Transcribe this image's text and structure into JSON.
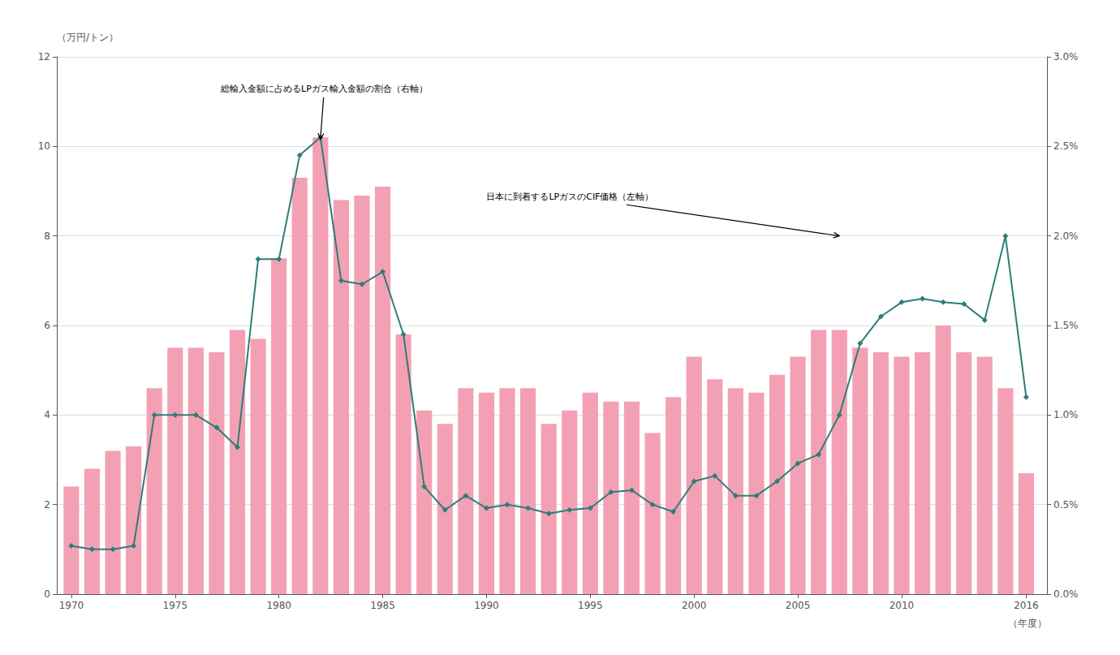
{
  "chart_data": {
    "type": "bar",
    "xlabel": "（年度）",
    "ylabel": "（万円/トン）",
    "x": [
      1970,
      1971,
      1972,
      1973,
      1974,
      1975,
      1976,
      1977,
      1978,
      1979,
      1980,
      1981,
      1982,
      1983,
      1984,
      1985,
      1986,
      1987,
      1988,
      1989,
      1990,
      1991,
      1992,
      1993,
      1994,
      1995,
      1996,
      1997,
      1998,
      1999,
      2000,
      2001,
      2002,
      2003,
      2004,
      2005,
      2006,
      2007,
      2008,
      2009,
      2010,
      2011,
      2012,
      2013,
      2014,
      2015,
      2016
    ],
    "series": [
      {
        "type": "bar",
        "color": "#f4a0b4",
        "values": [
          2.4,
          2.8,
          3.2,
          3.3,
          4.6,
          5.5,
          5.5,
          5.4,
          5.9,
          5.7,
          7.5,
          9.3,
          10.2,
          8.8,
          8.9,
          9.1,
          5.8,
          4.1,
          3.8,
          4.6,
          4.5,
          4.6,
          4.6,
          3.8,
          4.1,
          4.5,
          4.3,
          4.3,
          3.6,
          4.4,
          5.3,
          4.8,
          4.6,
          4.5,
          4.9,
          5.3,
          5.9,
          5.9,
          5.5,
          5.4,
          5.3,
          5.4,
          6.0,
          5.4,
          5.3,
          4.6,
          2.7
        ]
      },
      {
        "type": "line",
        "color": "#2d7d78",
        "marker": "diamond",
        "axis": "y2",
        "values": [
          0.0027,
          0.0025,
          0.0025,
          0.0027,
          0.01,
          0.01,
          0.01,
          0.0093,
          0.0082,
          0.0187,
          0.0187,
          0.0245,
          0.0255,
          0.0175,
          0.0173,
          0.018,
          0.0145,
          0.006,
          0.0047,
          0.0055,
          0.0048,
          0.005,
          0.0048,
          0.0045,
          0.0047,
          0.0048,
          0.0057,
          0.0058,
          0.005,
          0.0046,
          0.0063,
          0.0066,
          0.0055,
          0.0055,
          0.0063,
          0.0073,
          0.0078,
          0.01,
          0.014,
          0.0155,
          0.0163,
          0.0165,
          0.0163,
          0.0162,
          0.0153,
          0.02,
          0.011
        ]
      }
    ],
    "xlim": [
      1969.3,
      2017.0
    ],
    "xticks": [
      1970,
      1975,
      1980,
      1985,
      1990,
      1995,
      2000,
      2005,
      2010,
      2016
    ],
    "ylim": [
      0,
      12
    ],
    "yticks": [
      0,
      2,
      4,
      6,
      8,
      10,
      12
    ],
    "y2lim": [
      0.0,
      0.03
    ],
    "y2ticks": [
      {
        "value": 0.0,
        "label": "0.0%"
      },
      {
        "value": 0.005,
        "label": "0.5%"
      },
      {
        "value": 0.01,
        "label": "1.0%"
      },
      {
        "value": 0.015,
        "label": "1.5%"
      },
      {
        "value": 0.02,
        "label": "2.0%"
      },
      {
        "value": 0.025,
        "label": "2.5%"
      },
      {
        "value": 0.03,
        "label": "3.0%"
      }
    ],
    "grid": true,
    "annotations": [
      {
        "text": "総輸入金額に占めるLPガス輸入金額の割合（右軸）",
        "axis": "y2",
        "xy": [
          1982,
          0.0254
        ],
        "xytext": [
          1977.2,
          0.0282
        ]
      },
      {
        "text": "日本に到着するLPガスのCIF価格（左軸）",
        "axis": "y2",
        "xy": [
          2007,
          0.02
        ],
        "xytext": [
          1990,
          0.0222
        ]
      }
    ]
  }
}
